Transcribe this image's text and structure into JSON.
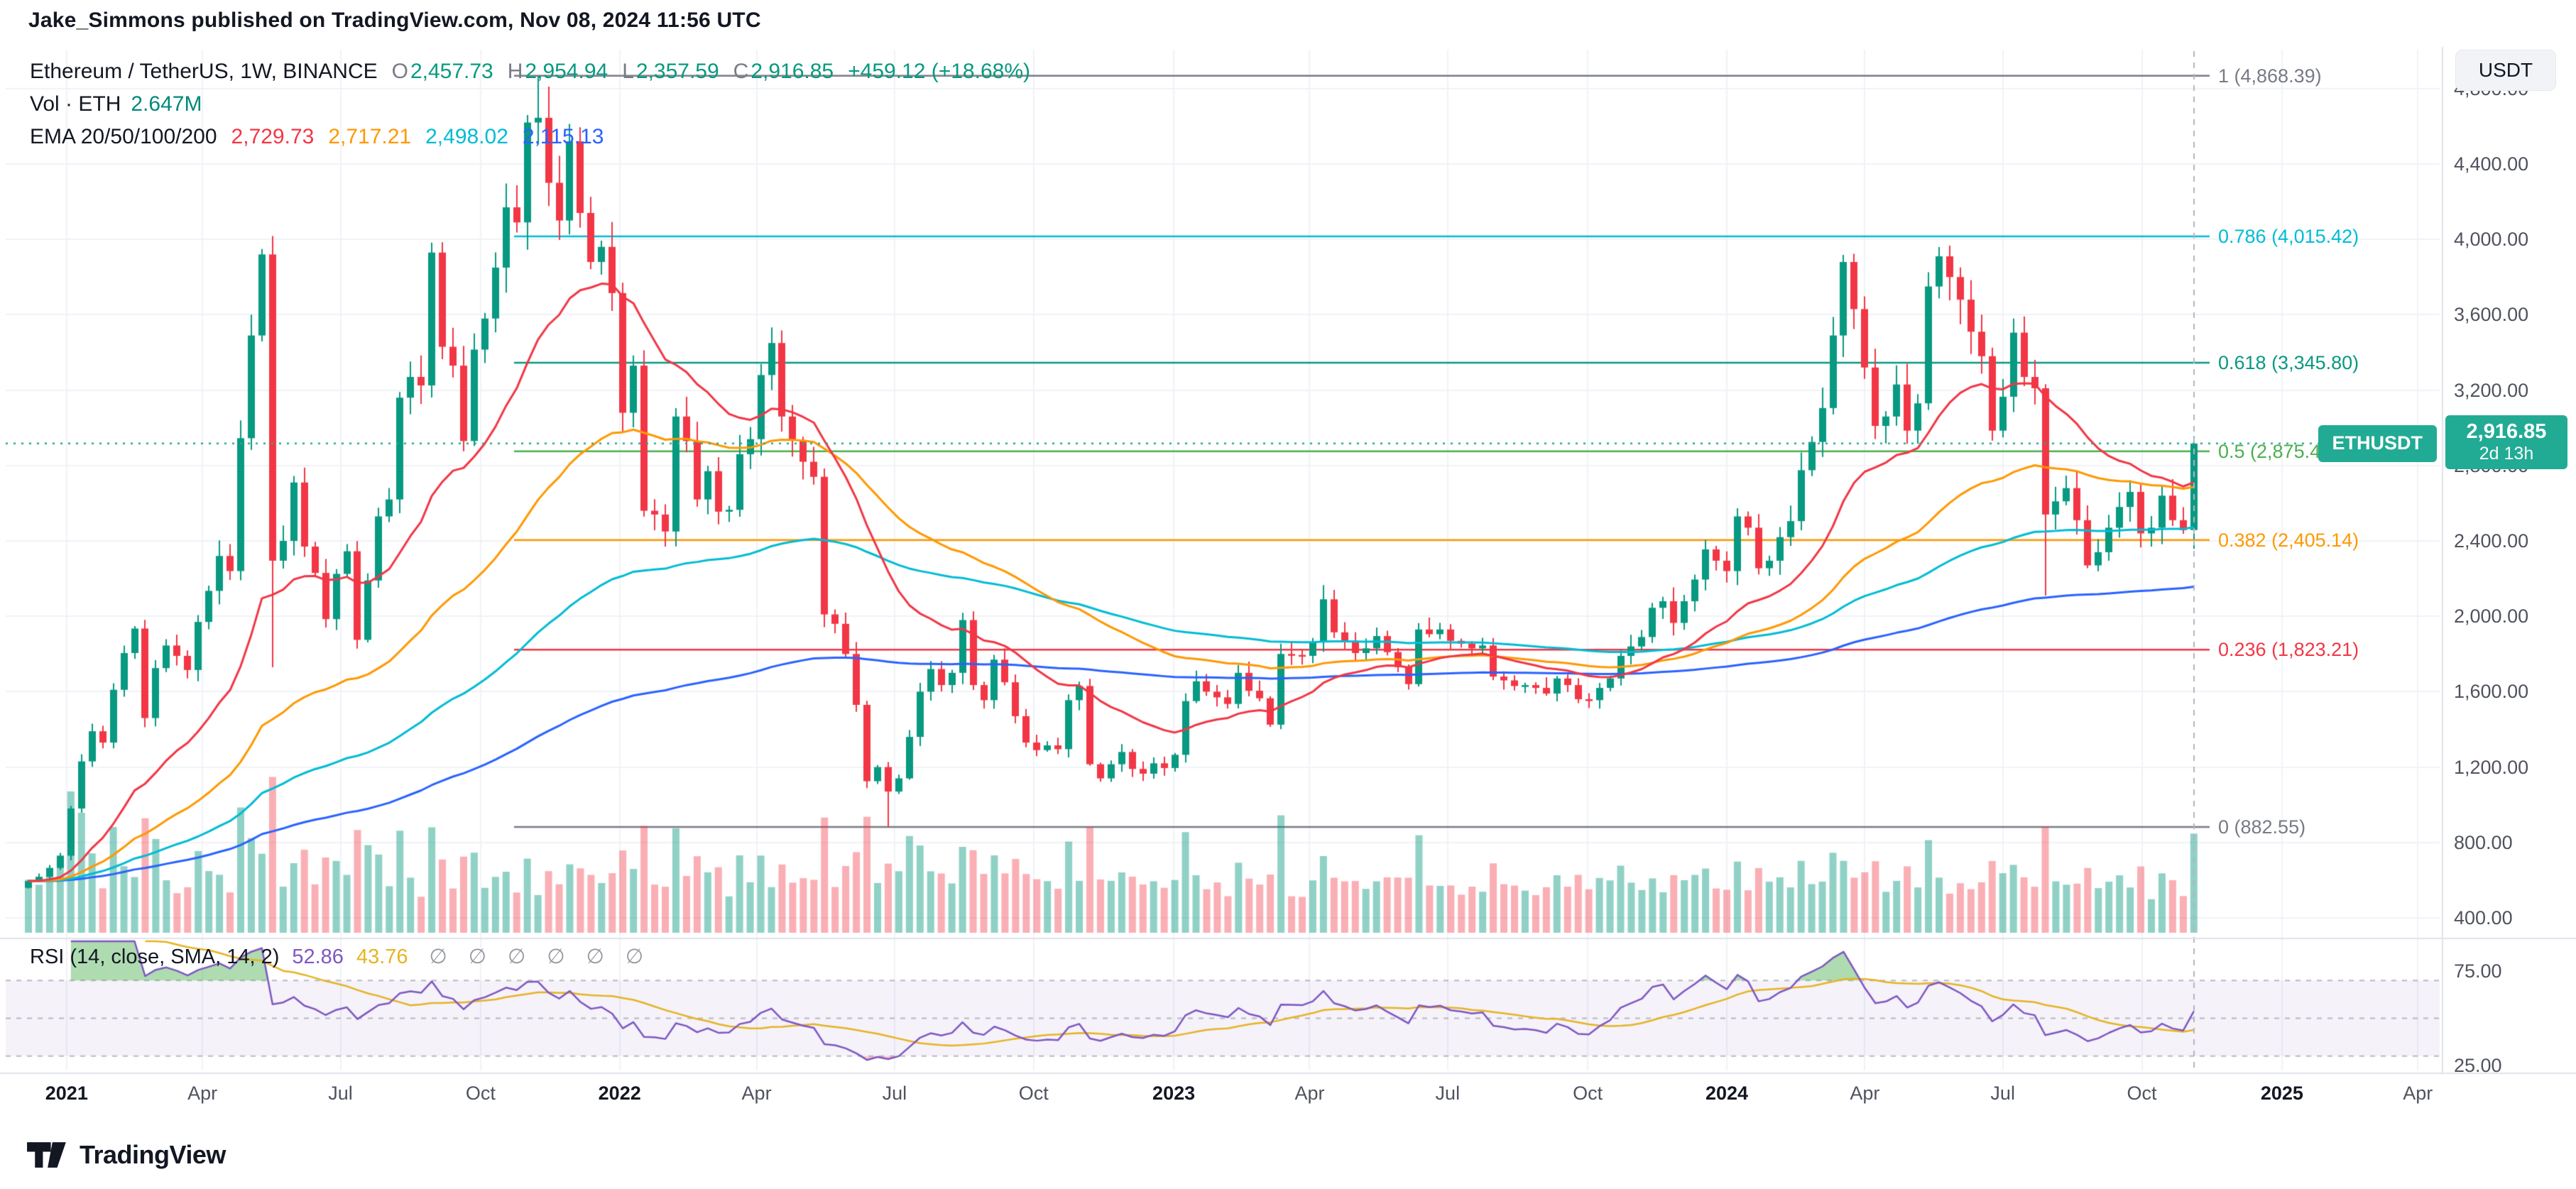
{
  "header": {
    "published_line": "Jake_Simmons published on TradingView.com, Nov 08, 2024 11:56 UTC"
  },
  "symbol_legend": {
    "title": "Ethereum / TetherUS, 1W, BINANCE",
    "o_label": "O",
    "o": "2,457.73",
    "h_label": "H",
    "h": "2,954.94",
    "l_label": "L",
    "l": "2,357.59",
    "c_label": "C",
    "c": "2,916.85",
    "change": "+459.12 (+18.68%)"
  },
  "volume_legend": {
    "label": "Vol · ETH",
    "value": "2.647M"
  },
  "ema_legend": {
    "label": "EMA 20/50/100/200",
    "values": [
      "2,729.73",
      "2,717.21",
      "2,498.02",
      "2,115.13"
    ],
    "colors": [
      "#f23645",
      "#ff9800",
      "#00bcd4",
      "#2962ff"
    ]
  },
  "rsi_legend": {
    "label": "RSI (14, close, SMA, 14, 2)",
    "rsi_value": "52.86",
    "ma_value": "43.76",
    "empty_values": [
      "∅",
      "∅",
      "∅",
      "∅",
      "∅",
      "∅"
    ]
  },
  "axis_chip": {
    "currency": "USDT"
  },
  "price_marker": {
    "symbol": "ETHUSDT",
    "price": "2,916.85",
    "countdown": "2d 13h"
  },
  "footer": {
    "brand": "TradingView"
  },
  "colors": {
    "up": "#089981",
    "down": "#f23645",
    "volume_up": "rgba(8,153,129,0.45)",
    "volume_down": "rgba(242,54,69,0.40)",
    "price_line": "#22ab94",
    "vol_value": "#00897b",
    "rsi_line": "#7e57c2",
    "rsi_ma": "#e6b422",
    "rsi_band": "rgba(126,87,194,0.08)",
    "text": "#131722",
    "muted": "#787b86"
  },
  "chart_data": {
    "type": "candlestick",
    "symbol": "ETHUSDT",
    "exchange": "BINANCE",
    "timeframe": "1W",
    "current_price": 2916.85,
    "last_candle": {
      "o": 2457.73,
      "h": 2954.94,
      "l": 2357.59,
      "c": 2916.85
    },
    "price_axis": {
      "ticks": [
        4800,
        4400,
        4000,
        3600,
        3200,
        2800,
        2400,
        2000,
        1600,
        1200,
        800,
        400
      ]
    },
    "rsi_axis": {
      "ticks": [
        75,
        25
      ]
    },
    "ema_periods": [
      20,
      50,
      100,
      200
    ],
    "ema_current": [
      2729.73,
      2717.21,
      2498.02,
      2115.13
    ],
    "rsi_current": 52.86,
    "rsi_ma_current": 43.76,
    "volume_current_label": "2.647M",
    "fib_levels": [
      {
        "label": "1 (4,868.39)",
        "ratio": 1,
        "price": 4868.39,
        "color": "#787b86"
      },
      {
        "label": "0.786 (4,015.42)",
        "ratio": 0.786,
        "price": 4015.42,
        "color": "#00bcd4"
      },
      {
        "label": "0.618 (3,345.80)",
        "ratio": 0.618,
        "price": 3345.8,
        "color": "#089981"
      },
      {
        "label": "0.5 (2,875.47)",
        "ratio": 0.5,
        "price": 2875.47,
        "color": "#4caf50"
      },
      {
        "label": "0.382 (2,405.14)",
        "ratio": 0.382,
        "price": 2405.14,
        "color": "#ff9800"
      },
      {
        "label": "0.236 (1,823.21)",
        "ratio": 0.236,
        "price": 1823.21,
        "color": "#f23645"
      },
      {
        "label": "0 (882.55)",
        "ratio": 0,
        "price": 882.55,
        "color": "#787b86"
      }
    ],
    "time_labels": [
      {
        "text": "2021",
        "week": 3.6,
        "bold": true
      },
      {
        "text": "Apr",
        "week": 16.4
      },
      {
        "text": "Jul",
        "week": 29.4
      },
      {
        "text": "Oct",
        "week": 42.6
      },
      {
        "text": "2022",
        "week": 55.7,
        "bold": true
      },
      {
        "text": "Apr",
        "week": 68.6
      },
      {
        "text": "Jul",
        "week": 81.6
      },
      {
        "text": "Oct",
        "week": 94.7
      },
      {
        "text": "2023",
        "week": 107.9,
        "bold": true
      },
      {
        "text": "Apr",
        "week": 120.7
      },
      {
        "text": "Jul",
        "week": 133.7
      },
      {
        "text": "Oct",
        "week": 146.9
      },
      {
        "text": "2024",
        "week": 160.0,
        "bold": true
      },
      {
        "text": "Apr",
        "week": 173.0
      },
      {
        "text": "Jul",
        "week": 186.0
      },
      {
        "text": "Oct",
        "week": 199.1
      },
      {
        "text": "2025",
        "week": 212.3,
        "bold": true
      },
      {
        "text": "Apr",
        "week": 225.1
      }
    ],
    "anchor_extremes": [
      {
        "index": 48,
        "high": 4868.39
      },
      {
        "index": 81,
        "low": 882.55
      },
      {
        "index": 23,
        "low": 1730
      },
      {
        "index": 190,
        "low": 2110
      }
    ],
    "closes": [
      595,
      618,
      665,
      730,
      980,
      1230,
      1390,
      1330,
      1610,
      1805,
      1935,
      1460,
      1725,
      1845,
      1790,
      1715,
      1970,
      2135,
      2320,
      2240,
      2945,
      3490,
      3920,
      2295,
      2400,
      2710,
      2370,
      2230,
      1985,
      2225,
      2345,
      1875,
      2190,
      2530,
      2620,
      3160,
      3270,
      3225,
      3930,
      3430,
      3330,
      2930,
      3415,
      3580,
      3850,
      4170,
      4090,
      4620,
      4645,
      4300,
      4100,
      4520,
      4140,
      3880,
      3960,
      3715,
      3080,
      3330,
      2560,
      2540,
      2450,
      3060,
      2930,
      2620,
      2770,
      2555,
      2565,
      2860,
      2940,
      3280,
      3450,
      3060,
      2935,
      2820,
      2740,
      2010,
      1960,
      1800,
      1530,
      1125,
      1200,
      1070,
      1140,
      1360,
      1600,
      1720,
      1635,
      1700,
      1980,
      1635,
      1555,
      1770,
      1650,
      1470,
      1330,
      1290,
      1315,
      1295,
      1555,
      1630,
      1215,
      1140,
      1215,
      1280,
      1190,
      1165,
      1220,
      1195,
      1265,
      1550,
      1655,
      1600,
      1570,
      1535,
      1700,
      1605,
      1565,
      1425,
      1800,
      1795,
      1790,
      1865,
      2090,
      1915,
      1870,
      1805,
      1830,
      1895,
      1810,
      1730,
      1640,
      1930,
      1905,
      1930,
      1870,
      1855,
      1830,
      1845,
      1680,
      1660,
      1630,
      1635,
      1620,
      1590,
      1670,
      1635,
      1560,
      1555,
      1620,
      1670,
      1790,
      1840,
      1890,
      2045,
      2080,
      1965,
      2080,
      2195,
      2355,
      2295,
      2240,
      2530,
      2470,
      2255,
      2295,
      2420,
      2505,
      2775,
      2925,
      3105,
      3490,
      3880,
      3630,
      3320,
      3010,
      3060,
      3230,
      2985,
      3130,
      3750,
      3910,
      3800,
      3680,
      3510,
      3380,
      2985,
      3165,
      3505,
      3270,
      3210,
      2540,
      2610,
      2680,
      2510,
      2270,
      2340,
      2470,
      2580,
      2660,
      2440,
      2470,
      2640,
      2510,
      2457,
      2916.85
    ]
  }
}
